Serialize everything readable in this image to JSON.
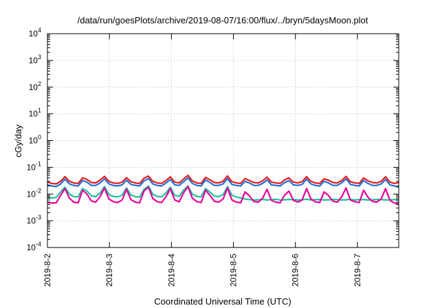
{
  "chart_data": {
    "type": "line",
    "title": "/data/run/goesPlots/archive/2019-08-07/16:00/flux/../bryn/5daysMoon.plot",
    "xlabel": "Coordinated Universal Time (UTC)",
    "ylabel": "cGy/day",
    "yscale": "log",
    "ylim": [
      0.0001,
      10000
    ],
    "xlim": [
      "2019-08-02T00:00",
      "2019-08-07T16:00"
    ],
    "grid": true,
    "x_tick_labels": [
      "2019-8-2",
      "2019-8-3",
      "2019-8-4",
      "2019-8-5",
      "2019-8-6",
      "2019-8-7"
    ],
    "y_ticks": [
      {
        "base": "10",
        "exp": "-4"
      },
      {
        "base": "10",
        "exp": "-3"
      },
      {
        "base": "10",
        "exp": "-2"
      },
      {
        "base": "10",
        "exp": "-1"
      },
      {
        "base": "10",
        "exp": "0"
      },
      {
        "base": "10",
        "exp": "1"
      },
      {
        "base": "10",
        "exp": "2"
      },
      {
        "base": "10",
        "exp": "3"
      },
      {
        "base": "10",
        "exp": "4"
      }
    ],
    "series": [
      {
        "color": "#e41a1c",
        "values": [
          0.028,
          0.025,
          0.024,
          0.03,
          0.045,
          0.03,
          0.026,
          0.025,
          0.04,
          0.035,
          0.027,
          0.026,
          0.033,
          0.046,
          0.03,
          0.026,
          0.025,
          0.028,
          0.041,
          0.029,
          0.026,
          0.025,
          0.039,
          0.047,
          0.03,
          0.026,
          0.025,
          0.032,
          0.044,
          0.028,
          0.026,
          0.036,
          0.05,
          0.031,
          0.026,
          0.025,
          0.042,
          0.034,
          0.027,
          0.026,
          0.03,
          0.048,
          0.029,
          0.026,
          0.025,
          0.038,
          0.032,
          0.027,
          0.026,
          0.031,
          0.043,
          0.028,
          0.026,
          0.025,
          0.034,
          0.04,
          0.028,
          0.026,
          0.029,
          0.045,
          0.03,
          0.026,
          0.025,
          0.037,
          0.033,
          0.027,
          0.026,
          0.032,
          0.046,
          0.029,
          0.026,
          0.025,
          0.04,
          0.031,
          0.027,
          0.026,
          0.03,
          0.044,
          0.028,
          0.025,
          0.027
        ]
      },
      {
        "color": "#1f6fd6",
        "values": [
          0.022,
          0.02,
          0.019,
          0.024,
          0.036,
          0.024,
          0.021,
          0.02,
          0.032,
          0.028,
          0.021,
          0.021,
          0.026,
          0.037,
          0.024,
          0.021,
          0.02,
          0.022,
          0.033,
          0.023,
          0.021,
          0.02,
          0.031,
          0.038,
          0.024,
          0.021,
          0.02,
          0.026,
          0.035,
          0.022,
          0.021,
          0.029,
          0.04,
          0.025,
          0.021,
          0.02,
          0.034,
          0.027,
          0.021,
          0.021,
          0.024,
          0.038,
          0.023,
          0.021,
          0.02,
          0.03,
          0.026,
          0.021,
          0.021,
          0.025,
          0.034,
          0.022,
          0.021,
          0.02,
          0.027,
          0.032,
          0.022,
          0.021,
          0.023,
          0.036,
          0.024,
          0.021,
          0.02,
          0.03,
          0.026,
          0.021,
          0.021,
          0.026,
          0.037,
          0.023,
          0.021,
          0.02,
          0.032,
          0.025,
          0.021,
          0.021,
          0.024,
          0.035,
          0.022,
          0.02,
          0.018
        ]
      },
      {
        "color": "#1fbf9a",
        "values": [
          0.008,
          0.007,
          0.0075,
          0.012,
          0.018,
          0.01,
          0.008,
          0.0078,
          0.016,
          0.013,
          0.0085,
          0.008,
          0.011,
          0.019,
          0.0095,
          0.0082,
          0.0078,
          0.009,
          0.017,
          0.0092,
          0.008,
          0.0077,
          0.015,
          0.02,
          0.0098,
          0.0082,
          0.0078,
          0.011,
          0.018,
          0.009,
          0.0081,
          0.014,
          0.02,
          0.01,
          0.0082,
          0.0078,
          0.016,
          0.012,
          0.0084,
          0.008,
          0.0095,
          0.019,
          0.009,
          0.0078,
          0.0072,
          0.0065,
          0.0062,
          0.006,
          0.0061,
          0.0063,
          0.006,
          0.0062,
          0.0064,
          0.006,
          0.0061,
          0.0063,
          0.0062,
          0.006,
          0.0061,
          0.0064,
          0.006,
          0.0062,
          0.0063,
          0.006,
          0.0061,
          0.0063,
          0.0062,
          0.006,
          0.0061,
          0.0064,
          0.006,
          0.0062,
          0.0063,
          0.006,
          0.0061,
          0.0063,
          0.0062,
          0.006,
          0.0061,
          0.0062,
          0.006
        ]
      },
      {
        "color": "#e8009c",
        "values": [
          0.0048,
          0.0046,
          0.0047,
          0.009,
          0.016,
          0.007,
          0.005,
          0.0047,
          0.014,
          0.01,
          0.0055,
          0.005,
          0.008,
          0.017,
          0.0065,
          0.0052,
          0.0048,
          0.006,
          0.015,
          0.0062,
          0.005,
          0.0047,
          0.013,
          0.018,
          0.0068,
          0.0052,
          0.0048,
          0.008,
          0.016,
          0.006,
          0.0051,
          0.011,
          0.019,
          0.007,
          0.0052,
          0.0048,
          0.014,
          0.009,
          0.0054,
          0.005,
          0.0065,
          0.017,
          0.006,
          0.005,
          0.0047,
          0.012,
          0.0085,
          0.0053,
          0.005,
          0.007,
          0.015,
          0.0058,
          0.005,
          0.0047,
          0.009,
          0.013,
          0.0058,
          0.005,
          0.006,
          0.016,
          0.0066,
          0.0051,
          0.0048,
          0.012,
          0.0088,
          0.0054,
          0.005,
          0.0078,
          0.017,
          0.006,
          0.0051,
          0.0048,
          0.014,
          0.0075,
          0.0053,
          0.005,
          0.0065,
          0.016,
          0.0058,
          0.0046,
          0.0044
        ]
      }
    ]
  }
}
